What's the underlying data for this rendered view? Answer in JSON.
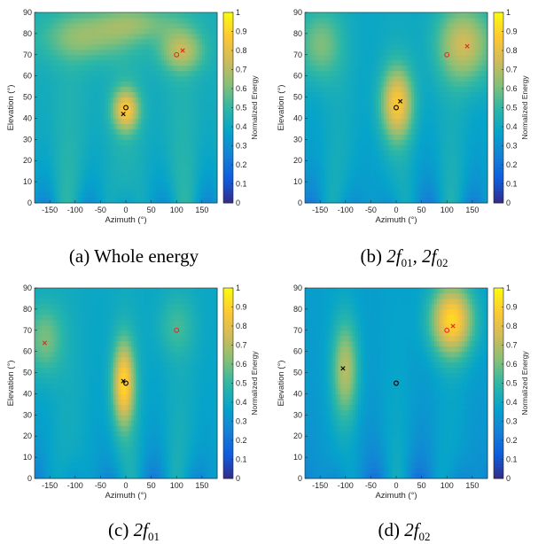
{
  "figure": {
    "panels": [
      {
        "caption_prefix": "(a) Whole energy",
        "caption_math": ""
      },
      {
        "caption_prefix": "(b)",
        "caption_math": "2f01, 2f02"
      },
      {
        "caption_prefix": "(c)",
        "caption_math": "2f01"
      },
      {
        "caption_prefix": "(d)",
        "caption_math": "2f02"
      }
    ],
    "colormap": [
      "#352a87",
      "#0f5cdd",
      "#1481d6",
      "#06a4ca",
      "#2eb7a4",
      "#87bf77",
      "#d1bb59",
      "#fec832",
      "#f9fb0e"
    ]
  },
  "chart_data": [
    {
      "type": "heatmap",
      "xlabel": "Azimuth (°)",
      "ylabel": "Elevation (°)",
      "colorbar_label": "Normalized Energy",
      "xlim": [
        -180,
        180
      ],
      "ylim": [
        0,
        90
      ],
      "clim": [
        0,
        1
      ],
      "xticks": [
        -150,
        -100,
        -50,
        0,
        50,
        100,
        150
      ],
      "yticks": [
        0,
        10,
        20,
        30,
        40,
        50,
        60,
        70,
        80,
        90
      ],
      "cticks": [
        0,
        0.1,
        0.2,
        0.3,
        0.4,
        0.5,
        0.6,
        0.7,
        0.8,
        0.9,
        1
      ],
      "markers": [
        {
          "shape": "circle",
          "color": "#e8262b",
          "az": 100,
          "el": 70
        },
        {
          "shape": "cross",
          "color": "#e8262b",
          "az": 112,
          "el": 72
        },
        {
          "shape": "circle",
          "color": "#000000",
          "az": 0,
          "el": 45
        },
        {
          "shape": "cross",
          "color": "#000000",
          "az": -5,
          "el": 42
        }
      ],
      "peaks": [
        {
          "az": 0,
          "el": 44,
          "saz": 18,
          "sel": 7,
          "amp": 0.42
        },
        {
          "az": 110,
          "el": 72,
          "saz": 30,
          "sel": 7,
          "amp": 0.28
        },
        {
          "az": -80,
          "el": 78,
          "saz": 60,
          "sel": 8,
          "amp": 0.2
        },
        {
          "az": 20,
          "el": 85,
          "saz": 60,
          "sel": 6,
          "amp": 0.18
        }
      ],
      "base": 0.44
    },
    {
      "type": "heatmap",
      "xlabel": "Azimuth (°)",
      "ylabel": "Elevation (°)",
      "colorbar_label": "Normalized Energy",
      "xlim": [
        -180,
        180
      ],
      "ylim": [
        0,
        90
      ],
      "clim": [
        0,
        1
      ],
      "xticks": [
        -150,
        -100,
        -50,
        0,
        50,
        100,
        150
      ],
      "yticks": [
        0,
        10,
        20,
        30,
        40,
        50,
        60,
        70,
        80,
        90
      ],
      "cticks": [
        0,
        0.1,
        0.2,
        0.3,
        0.4,
        0.5,
        0.6,
        0.7,
        0.8,
        0.9,
        1
      ],
      "markers": [
        {
          "shape": "circle",
          "color": "#e8262b",
          "az": 100,
          "el": 70
        },
        {
          "shape": "cross",
          "color": "#e8262b",
          "az": 140,
          "el": 74
        },
        {
          "shape": "circle",
          "color": "#000000",
          "az": 0,
          "el": 45
        },
        {
          "shape": "cross",
          "color": "#000000",
          "az": 8,
          "el": 48
        }
      ],
      "peaks": [
        {
          "az": 2,
          "el": 47,
          "saz": 22,
          "sel": 12,
          "amp": 0.45
        },
        {
          "az": 135,
          "el": 75,
          "saz": 38,
          "sel": 13,
          "amp": 0.35
        },
        {
          "az": -150,
          "el": 75,
          "saz": 30,
          "sel": 12,
          "amp": 0.22
        }
      ],
      "base": 0.4
    },
    {
      "type": "heatmap",
      "xlabel": "Azimuth (°)",
      "ylabel": "Elevation (°)",
      "colorbar_label": "Normalized Energy",
      "xlim": [
        -180,
        180
      ],
      "ylim": [
        0,
        90
      ],
      "clim": [
        0,
        1
      ],
      "xticks": [
        -150,
        -100,
        -50,
        0,
        50,
        100,
        150
      ],
      "yticks": [
        0,
        10,
        20,
        30,
        40,
        50,
        60,
        70,
        80,
        90
      ],
      "cticks": [
        0,
        0.1,
        0.2,
        0.3,
        0.4,
        0.5,
        0.6,
        0.7,
        0.8,
        0.9,
        1
      ],
      "markers": [
        {
          "shape": "circle",
          "color": "#e8262b",
          "az": 100,
          "el": 70
        },
        {
          "shape": "cross",
          "color": "#e8262b",
          "az": -160,
          "el": 64
        },
        {
          "shape": "circle",
          "color": "#000000",
          "az": 0,
          "el": 45
        },
        {
          "shape": "cross",
          "color": "#000000",
          "az": -5,
          "el": 46
        }
      ],
      "peaks": [
        {
          "az": -4,
          "el": 45,
          "saz": 15,
          "sel": 14,
          "amp": 0.5
        },
        {
          "az": -160,
          "el": 66,
          "saz": 25,
          "sel": 12,
          "amp": 0.22
        },
        {
          "az": 100,
          "el": 72,
          "saz": 25,
          "sel": 10,
          "amp": 0.12
        }
      ],
      "base": 0.4
    },
    {
      "type": "heatmap",
      "xlabel": "Azimuth (°)",
      "ylabel": "Elevation (°)",
      "colorbar_label": "Normalized Energy",
      "xlim": [
        -180,
        180
      ],
      "ylim": [
        0,
        90
      ],
      "clim": [
        0,
        1
      ],
      "xticks": [
        -150,
        -100,
        -50,
        0,
        50,
        100,
        150
      ],
      "yticks": [
        0,
        10,
        20,
        30,
        40,
        50,
        60,
        70,
        80,
        90
      ],
      "cticks": [
        0,
        0.1,
        0.2,
        0.3,
        0.4,
        0.5,
        0.6,
        0.7,
        0.8,
        0.9,
        1
      ],
      "markers": [
        {
          "shape": "circle",
          "color": "#e8262b",
          "az": 100,
          "el": 70
        },
        {
          "shape": "cross",
          "color": "#e8262b",
          "az": 112,
          "el": 72
        },
        {
          "shape": "circle",
          "color": "#000000",
          "az": 0,
          "el": 45
        },
        {
          "shape": "cross",
          "color": "#000000",
          "az": -105,
          "el": 52
        }
      ],
      "peaks": [
        {
          "az": 110,
          "el": 75,
          "saz": 30,
          "sel": 12,
          "amp": 0.55
        },
        {
          "az": -100,
          "el": 52,
          "saz": 18,
          "sel": 16,
          "amp": 0.33
        }
      ],
      "base": 0.36
    }
  ]
}
